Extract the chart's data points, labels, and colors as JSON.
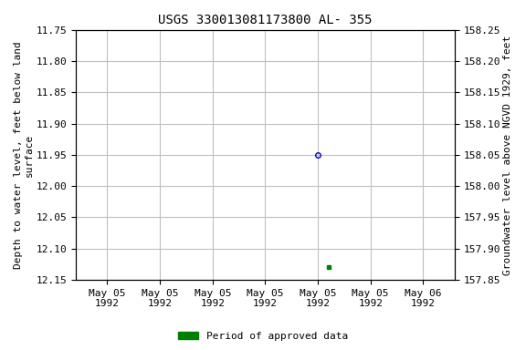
{
  "title": "USGS 330013081173800 AL- 355",
  "ylabel_left": "Depth to water level, feet below land\nsurface",
  "ylabel_right": "Groundwater level above NGVD 1929, feet",
  "ylim_left_top": 11.75,
  "ylim_left_bottom": 12.15,
  "ylim_right_top": 158.25,
  "ylim_right_bottom": 157.85,
  "yticks_left": [
    11.75,
    11.8,
    11.85,
    11.9,
    11.95,
    12.0,
    12.05,
    12.1,
    12.15
  ],
  "yticks_right": [
    158.25,
    158.2,
    158.15,
    158.1,
    158.05,
    158.0,
    157.95,
    157.9,
    157.85
  ],
  "background_color": "#ffffff",
  "grid_color": "#c0c0c0",
  "point1_x": 2.0,
  "point1_y": 11.95,
  "point1_color": "#0000cc",
  "point1_marker": "o",
  "point1_markersize": 4,
  "point2_x": 2.1,
  "point2_y": 12.13,
  "point2_color": "#008000",
  "point2_marker": "s",
  "point2_markersize": 3,
  "legend_label": "Period of approved data",
  "legend_color": "#008000",
  "x_tick_positions": [
    0.0,
    0.5,
    1.0,
    1.5,
    2.0,
    2.5,
    3.0
  ],
  "x_tick_labels": [
    "May 05\n1992",
    "May 05\n1992",
    "May 05\n1992",
    "May 05\n1992",
    "May 05\n1992",
    "May 05\n1992",
    "May 06\n1992"
  ],
  "xlim": [
    -0.3,
    3.3
  ],
  "font_family": "monospace",
  "title_fontsize": 10,
  "axis_label_fontsize": 8,
  "tick_fontsize": 8
}
